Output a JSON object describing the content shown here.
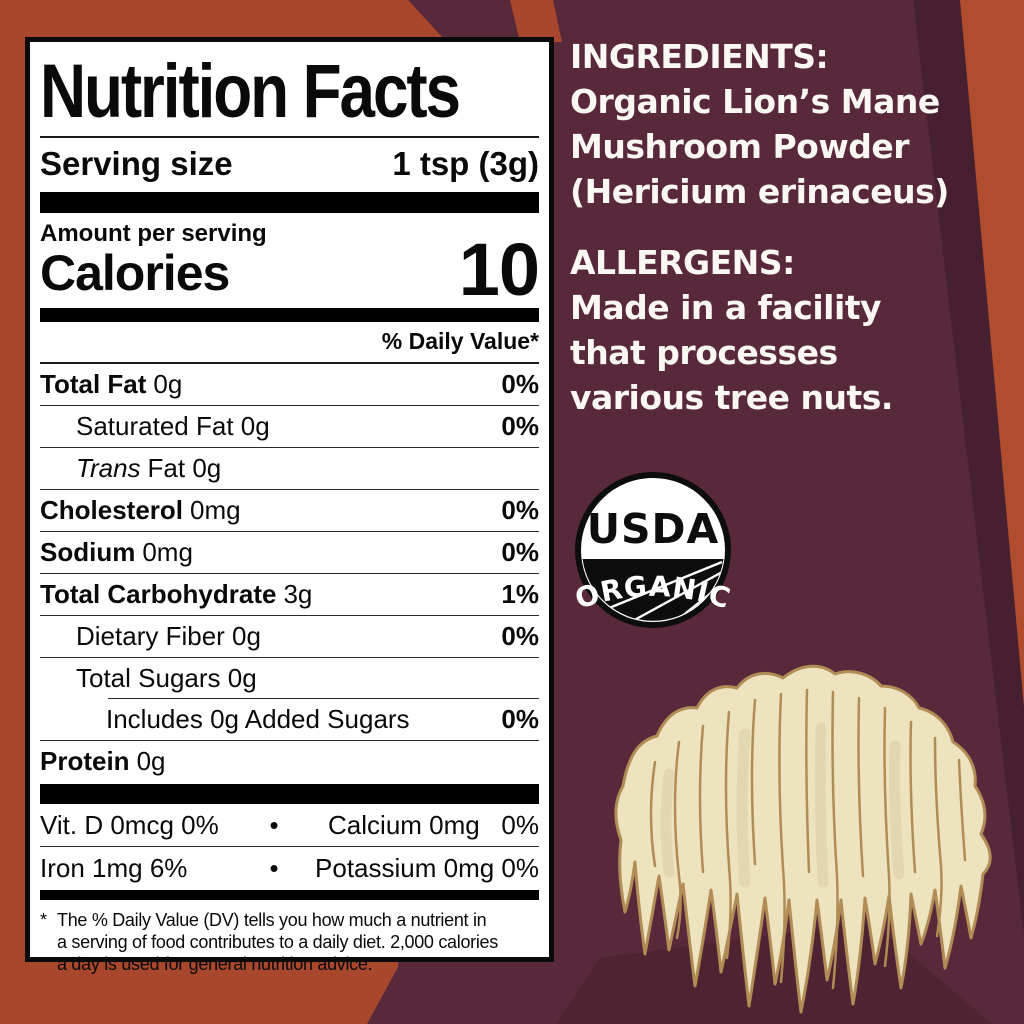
{
  "background": {
    "orange": "#A8472B",
    "maroon": "#57293B",
    "maroon_dark": "#462030",
    "shadow": "#4C2331"
  },
  "nutrition_label": {
    "title": "Nutrition Facts",
    "serving_size_label": "Serving size",
    "serving_size_value": "1 tsp (3g)",
    "amount_per_serving": "Amount per serving",
    "calories_label": "Calories",
    "calories_value": "10",
    "daily_value_header": "% Daily Value*",
    "rows": [
      {
        "bold": "Total Fat",
        "rest": "0g",
        "dv": "0%",
        "indent": 0
      },
      {
        "rest": "Saturated Fat 0g",
        "dv": "0%",
        "indent": 1
      },
      {
        "italic": "Trans",
        "rest": "Fat 0g",
        "dv": "",
        "indent": 1
      },
      {
        "bold": "Cholesterol",
        "rest": "0mg",
        "dv": "0%",
        "indent": 0
      },
      {
        "bold": "Sodium",
        "rest": "0mg",
        "dv": "0%",
        "indent": 0
      },
      {
        "bold": "Total Carbohydrate",
        "rest": "3g",
        "dv": "1%",
        "indent": 0
      },
      {
        "rest": "Dietary Fiber 0g",
        "dv": "0%",
        "indent": 1
      },
      {
        "rest": "Total Sugars 0g",
        "dv": "",
        "indent": 1,
        "sep": "indent"
      },
      {
        "rest": "Includes 0g Added Sugars",
        "dv": "0%",
        "indent": 2
      },
      {
        "bold": "Protein",
        "rest": "0g",
        "dv": "",
        "indent": 0,
        "sep": "none"
      }
    ],
    "micro_bullet": "•",
    "micronutrients": [
      {
        "left": "Vit. D 0mcg 0%",
        "right": "Calcium 0mg   0%"
      },
      {
        "left": "Iron 1mg 6%",
        "right": "Potassium 0mg 0%"
      }
    ],
    "footnote_marker": "*",
    "footnote_lines": [
      "The % Daily Value (DV) tells you how much a nutrient in",
      "a serving of food contributes to a daily diet. 2,000 calories",
      "a day is used for general nutrition advice."
    ]
  },
  "right_panel": {
    "ingredients_heading": "INGREDIENTS:",
    "ingredients_lines": [
      "Organic Lion’s Mane",
      "Mushroom Powder",
      "(Hericium erinaceus)"
    ],
    "allergens_heading": "ALLERGENS:",
    "allergens_lines": [
      "Made in a facility",
      "that processes",
      "various tree nuts."
    ],
    "seal": {
      "top": "USDA",
      "bottom": "ORGANIC"
    },
    "illustration": "lion's mane mushroom"
  }
}
